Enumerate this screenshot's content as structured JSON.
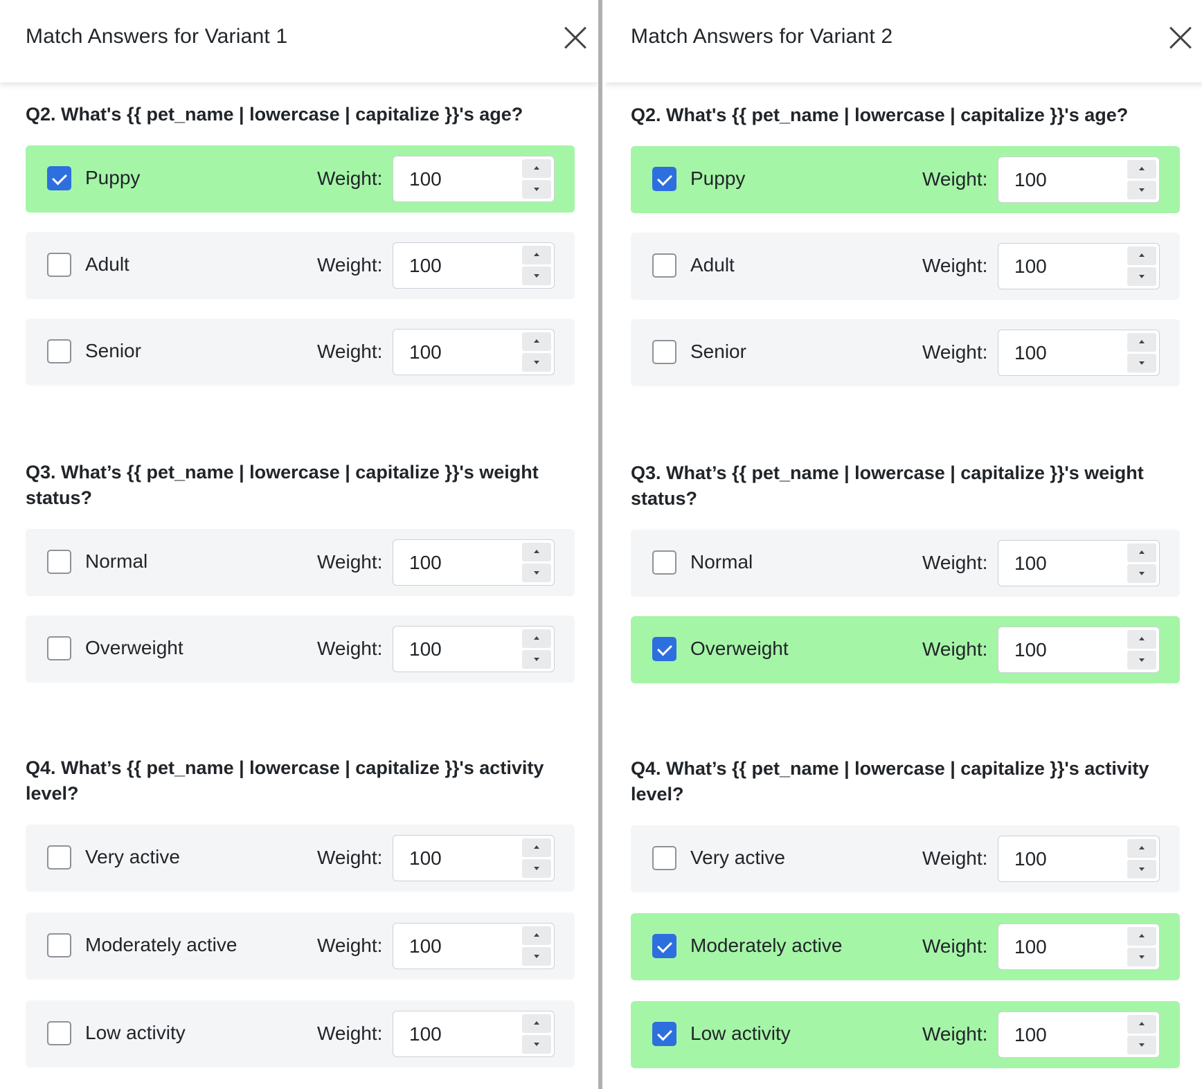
{
  "panels": [
    {
      "title": "Match Answers for Variant 1",
      "questions": [
        {
          "text": "Q2. What's {{ pet_name | lowercase | capitalize }}'s age?",
          "answers": [
            {
              "label": "Puppy",
              "weight_label": "Weight:",
              "weight": "100",
              "checked": true
            },
            {
              "label": "Adult",
              "weight_label": "Weight:",
              "weight": "100",
              "checked": false
            },
            {
              "label": "Senior",
              "weight_label": "Weight:",
              "weight": "100",
              "checked": false
            }
          ]
        },
        {
          "text": "Q3. What’s {{ pet_name | lowercase | capitalize }}'s weight status?",
          "answers": [
            {
              "label": "Normal",
              "weight_label": "Weight:",
              "weight": "100",
              "checked": false
            },
            {
              "label": "Overweight",
              "weight_label": "Weight:",
              "weight": "100",
              "checked": false
            }
          ]
        },
        {
          "text": "Q4. What’s {{ pet_name | lowercase | capitalize }}'s activity level?",
          "answers": [
            {
              "label": "Very active",
              "weight_label": "Weight:",
              "weight": "100",
              "checked": false
            },
            {
              "label": "Moderately active",
              "weight_label": "Weight:",
              "weight": "100",
              "checked": false
            },
            {
              "label": "Low activity",
              "weight_label": "Weight:",
              "weight": "100",
              "checked": false
            }
          ]
        }
      ]
    },
    {
      "title": "Match Answers for Variant 2",
      "questions": [
        {
          "text": "Q2. What's {{ pet_name | lowercase | capitalize }}'s age?",
          "answers": [
            {
              "label": "Puppy",
              "weight_label": "Weight:",
              "weight": "100",
              "checked": true
            },
            {
              "label": "Adult",
              "weight_label": "Weight:",
              "weight": "100",
              "checked": false
            },
            {
              "label": "Senior",
              "weight_label": "Weight:",
              "weight": "100",
              "checked": false
            }
          ]
        },
        {
          "text": "Q3. What’s {{ pet_name | lowercase | capitalize }}'s weight status?",
          "answers": [
            {
              "label": "Normal",
              "weight_label": "Weight:",
              "weight": "100",
              "checked": false
            },
            {
              "label": "Overweight",
              "weight_label": "Weight:",
              "weight": "100",
              "checked": true
            }
          ]
        },
        {
          "text": "Q4. What’s {{ pet_name | lowercase | capitalize }}'s activity level?",
          "answers": [
            {
              "label": "Very active",
              "weight_label": "Weight:",
              "weight": "100",
              "checked": false
            },
            {
              "label": "Moderately active",
              "weight_label": "Weight:",
              "weight": "100",
              "checked": true
            },
            {
              "label": "Low activity",
              "weight_label": "Weight:",
              "weight": "100",
              "checked": true
            }
          ]
        }
      ]
    }
  ],
  "colors": {
    "selected_row": "#a5f5a7",
    "unselected_row": "#f4f5f7",
    "checkbox_checked": "#2d6fde",
    "divider": "#aeb0b2"
  },
  "icons": {
    "close": "close-icon",
    "check": "check-icon",
    "spin_up": "caret-up-icon",
    "spin_down": "caret-down-icon"
  }
}
